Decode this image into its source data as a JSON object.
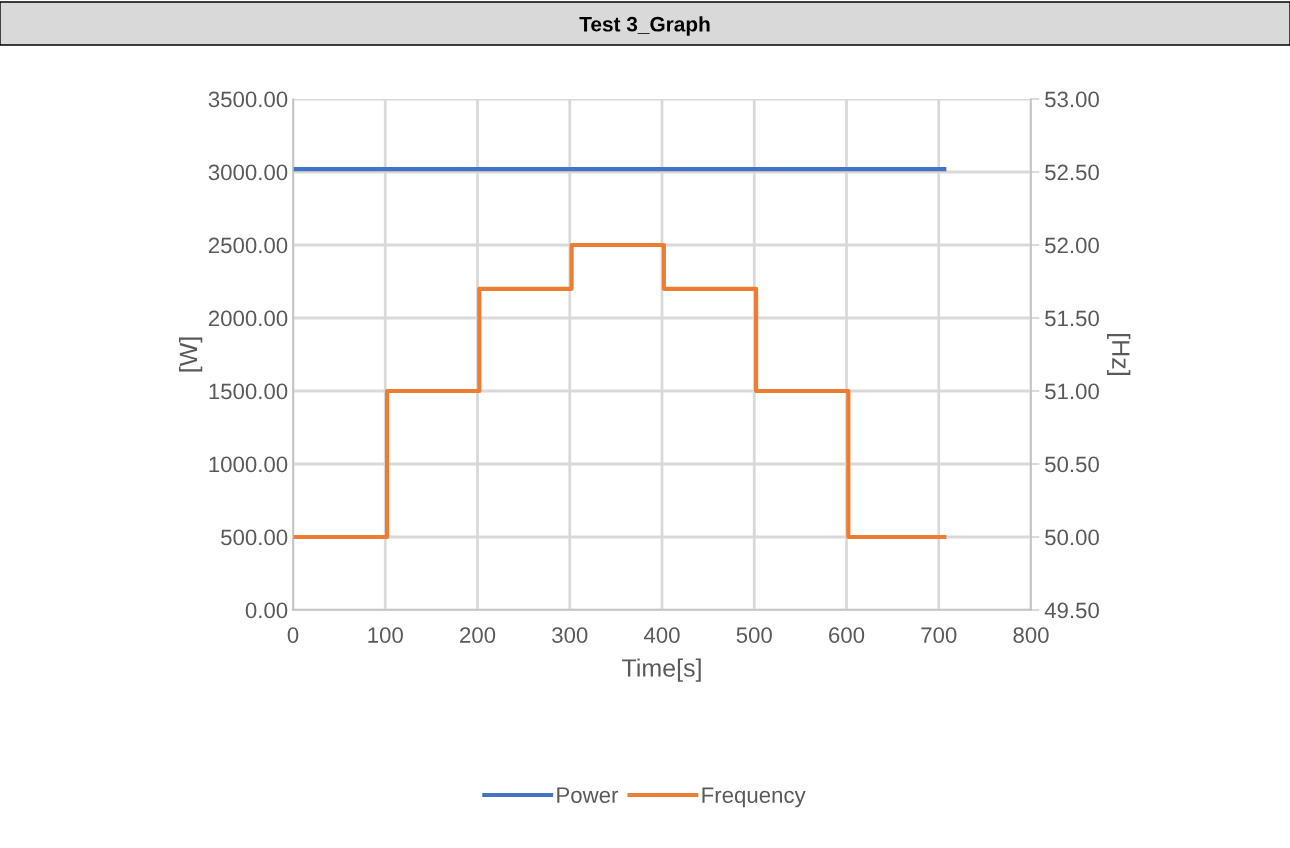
{
  "chart_data": {
    "type": "line",
    "title": "Test 3_Graph",
    "xlabel": "Time[s]",
    "ylabel": "[W]",
    "y2label": "[Hz]",
    "series": [
      {
        "name": "Power",
        "color": "#4472c4",
        "x": [
          0,
          706
        ],
        "values": [
          3020,
          3020
        ]
      },
      {
        "name": "Frequency",
        "color": "#ed7d31",
        "type": "step",
        "axis": "y2",
        "x": [
          0,
          102,
          202,
          302,
          402,
          502,
          602,
          706
        ],
        "values": [
          50.0,
          51.0,
          51.7,
          52.0,
          51.7,
          51.0,
          50.0,
          50.0
        ]
      }
    ],
    "xlim": [
      0,
      800
    ],
    "xticks": [
      0,
      100,
      200,
      300,
      400,
      500,
      600,
      700,
      800
    ],
    "ylim": [
      0,
      3500
    ],
    "yticks": [
      {
        "value": 0,
        "label": "0.00"
      },
      {
        "value": 500,
        "label": "500.00"
      },
      {
        "value": 1000,
        "label": "1000.00"
      },
      {
        "value": 1500,
        "label": "1500.00"
      },
      {
        "value": 2000,
        "label": "2000.00"
      },
      {
        "value": 2500,
        "label": "2500.00"
      },
      {
        "value": 3000,
        "label": "3000.00"
      },
      {
        "value": 3500,
        "label": "3500.00"
      }
    ],
    "y2lim": [
      49.5,
      53
    ],
    "y2ticks": [
      {
        "value": 49.5,
        "label": "49.50"
      },
      {
        "value": 50,
        "label": "50.00"
      },
      {
        "value": 50.5,
        "label": "50.50"
      },
      {
        "value": 51,
        "label": "51.00"
      },
      {
        "value": 51.5,
        "label": "51.50"
      },
      {
        "value": 52,
        "label": "52.00"
      },
      {
        "value": 52.5,
        "label": "52.50"
      },
      {
        "value": 53,
        "label": "53.00"
      }
    ],
    "grid": true,
    "legend": "bottom",
    "line_style": "solid",
    "marker": "none"
  }
}
